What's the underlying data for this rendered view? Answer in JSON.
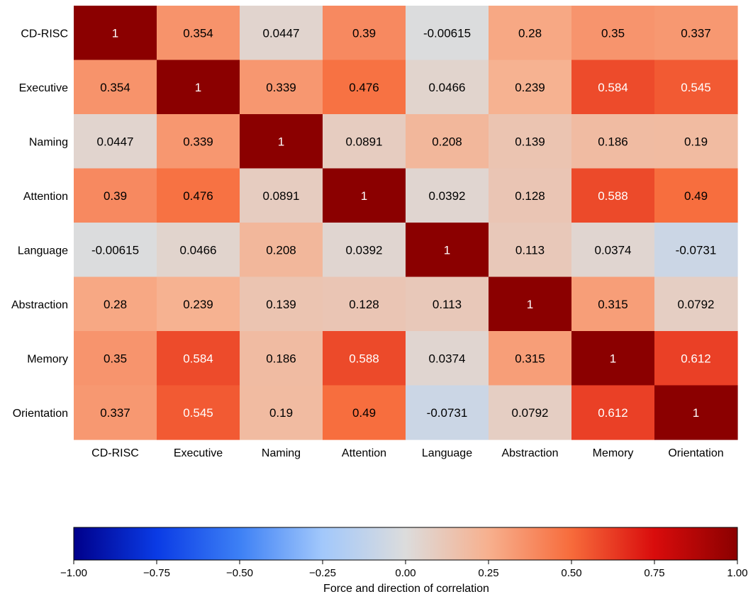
{
  "chart_data": {
    "type": "heatmap",
    "title": "",
    "xlabel": "",
    "ylabel": "",
    "row_labels": [
      "CD-RISC",
      "Executive",
      "Naming",
      "Attention",
      "Language",
      "Abstraction",
      "Memory",
      "Orientation"
    ],
    "col_labels": [
      "CD-RISC",
      "Executive",
      "Naming",
      "Attention",
      "Language",
      "Abstraction",
      "Memory",
      "Orientation"
    ],
    "values": [
      [
        1,
        0.354,
        0.0447,
        0.39,
        -0.00615,
        0.28,
        0.35,
        0.337
      ],
      [
        0.354,
        1,
        0.339,
        0.476,
        0.0466,
        0.239,
        0.584,
        0.545
      ],
      [
        0.0447,
        0.339,
        1,
        0.0891,
        0.208,
        0.139,
        0.186,
        0.19
      ],
      [
        0.39,
        0.476,
        0.0891,
        1,
        0.0392,
        0.128,
        0.588,
        0.49
      ],
      [
        -0.00615,
        0.0466,
        0.208,
        0.0392,
        1,
        0.113,
        0.0374,
        -0.0731
      ],
      [
        0.28,
        0.239,
        0.139,
        0.128,
        0.113,
        1,
        0.315,
        0.0792
      ],
      [
        0.35,
        0.584,
        0.186,
        0.588,
        0.0374,
        0.315,
        1,
        0.612
      ],
      [
        0.337,
        0.545,
        0.19,
        0.49,
        -0.0731,
        0.0792,
        0.612,
        1
      ]
    ],
    "value_labels": [
      [
        "1",
        "0.354",
        "0.0447",
        "0.39",
        "-0.00615",
        "0.28",
        "0.35",
        "0.337"
      ],
      [
        "0.354",
        "1",
        "0.339",
        "0.476",
        "0.0466",
        "0.239",
        "0.584",
        "0.545"
      ],
      [
        "0.0447",
        "0.339",
        "1",
        "0.0891",
        "0.208",
        "0.139",
        "0.186",
        "0.19"
      ],
      [
        "0.39",
        "0.476",
        "0.0891",
        "1",
        "0.0392",
        "0.128",
        "0.588",
        "0.49"
      ],
      [
        "-0.00615",
        "0.0466",
        "0.208",
        "0.0392",
        "1",
        "0.113",
        "0.0374",
        "-0.0731"
      ],
      [
        "0.28",
        "0.239",
        "0.139",
        "0.128",
        "0.113",
        "1",
        "0.315",
        "0.0792"
      ],
      [
        "0.35",
        "0.584",
        "0.186",
        "0.588",
        "0.0374",
        "0.315",
        "1",
        "0.612"
      ],
      [
        "0.337",
        "0.545",
        "0.19",
        "0.49",
        "-0.0731",
        "0.0792",
        "0.612",
        "1"
      ]
    ],
    "colorbar": {
      "label": "Force and direction of correlation",
      "range": [
        -1,
        1
      ],
      "ticks": [
        -1,
        -0.75,
        -0.5,
        -0.25,
        0,
        0.25,
        0.5,
        0.75,
        1
      ],
      "tick_labels": [
        "−1.00",
        "−0.75",
        "−0.50",
        "−0.25",
        "0.00",
        "0.25",
        "0.50",
        "0.75",
        "1.00"
      ],
      "orientation": "horizontal",
      "placement": "bottom"
    },
    "colormap": {
      "name": "diverging blue-gray-red",
      "stops": [
        {
          "v": -1.0,
          "color": "#00008b"
        },
        {
          "v": -0.75,
          "color": "#0a3be5"
        },
        {
          "v": -0.5,
          "color": "#3d80f5"
        },
        {
          "v": -0.25,
          "color": "#a2c8fb"
        },
        {
          "v": 0.0,
          "color": "#dcdcdc"
        },
        {
          "v": 0.25,
          "color": "#f7b08e"
        },
        {
          "v": 0.5,
          "color": "#f76b3b"
        },
        {
          "v": 0.75,
          "color": "#d90c0c"
        },
        {
          "v": 1.0,
          "color": "#8b0000"
        }
      ]
    },
    "grid": false,
    "legend": "none"
  }
}
